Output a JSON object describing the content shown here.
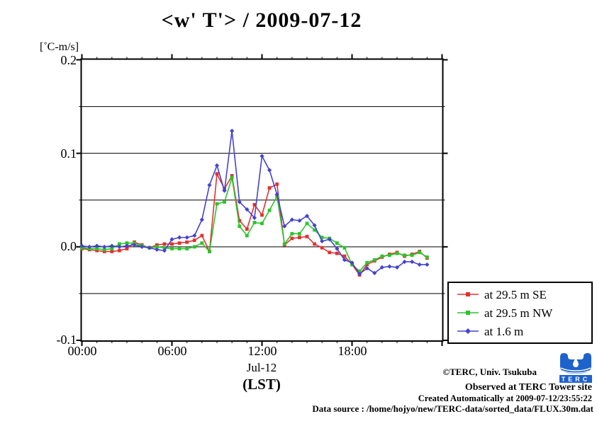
{
  "title": "<w' T'> / 2009-07-12",
  "y_axis": {
    "unit_label": "[˚C-m/s]",
    "labels": [
      "0.2",
      "0.1",
      "0.0",
      "-0.1"
    ]
  },
  "x_axis": {
    "labels": [
      "00:00",
      "06:00",
      "12:00",
      "18:00"
    ],
    "date_label": "Jul-12",
    "timezone_label": "(LST)"
  },
  "legend": {
    "entries": [
      {
        "label": "at 29.5 m SE",
        "color": "#e03232",
        "marker": "square"
      },
      {
        "label": "at 29.5 m NW",
        "color": "#2cc42c",
        "marker": "square"
      },
      {
        "label": "at 1.6 m",
        "color": "#4343cf",
        "marker": "diamond"
      }
    ]
  },
  "footer": {
    "credit": "©TERC, Univ. Tsukuba",
    "observed": "Observed at TERC Tower site",
    "created": "Created Automatically at 2009-07-12/23:55:22",
    "datasource": "Data source : /home/hojyo/new/TERC-data/sorted_data/FLUX.30m.dat",
    "logo_text": "TERC"
  },
  "chart_data": {
    "type": "line",
    "title": "<w' T'> / 2009-07-12",
    "ylabel": "[˚C-m/s]",
    "xlabel": "Jul-12 (LST)",
    "xlim_hours": [
      0,
      24
    ],
    "ylim": [
      -0.1,
      0.2
    ],
    "x_start_hour": 0,
    "x_step_hours": 0.5,
    "y_grid_values": [
      0.15,
      0.1,
      0.05,
      0.0,
      -0.05
    ],
    "y_tick_step": 0.05,
    "y_major_tick_step": 0.1,
    "x_minor_tick_step": 1,
    "x_major_tick_hours": [
      0,
      6,
      12,
      18,
      24
    ],
    "legend_position": "outside-right-bottom",
    "grid": true,
    "series": [
      {
        "name": "at 29.5 m SE",
        "color": "#e03232",
        "marker": "square",
        "values": [
          -0.002,
          -0.003,
          -0.004,
          -0.005,
          -0.005,
          -0.004,
          -0.002,
          0.005,
          0.002,
          -0.001,
          0.002,
          0.003,
          0.003,
          0.004,
          0.005,
          0.007,
          0.012,
          -0.005,
          0.078,
          0.062,
          0.076,
          0.028,
          0.019,
          0.045,
          0.034,
          0.063,
          0.067,
          0.002,
          0.009,
          0.01,
          0.011,
          0.003,
          -0.001,
          -0.006,
          -0.007,
          -0.01,
          -0.019,
          -0.03,
          -0.019,
          -0.015,
          -0.011,
          -0.008,
          -0.006,
          -0.01,
          -0.008,
          -0.005,
          -0.012
        ]
      },
      {
        "name": "at 29.5 m NW",
        "color": "#2cc42c",
        "marker": "square",
        "values": [
          -0.001,
          -0.002,
          -0.002,
          -0.003,
          -0.002,
          0.003,
          0.004,
          0.004,
          0.001,
          -0.001,
          0.0,
          -0.001,
          -0.002,
          -0.002,
          -0.002,
          0.0,
          0.004,
          -0.005,
          0.046,
          0.048,
          0.074,
          0.022,
          0.012,
          0.026,
          0.025,
          0.039,
          0.054,
          0.003,
          0.014,
          0.014,
          0.025,
          0.018,
          0.01,
          0.009,
          0.004,
          -0.001,
          -0.019,
          -0.026,
          -0.017,
          -0.014,
          -0.01,
          -0.009,
          -0.007,
          -0.009,
          -0.009,
          -0.006,
          -0.011
        ]
      },
      {
        "name": "at 1.6 m",
        "color": "#4343cf",
        "marker": "diamond",
        "values": [
          0.001,
          0.0,
          0.001,
          0.0,
          0.001,
          0.0,
          0.001,
          0.002,
          0.0,
          -0.001,
          -0.003,
          -0.004,
          0.008,
          0.01,
          0.01,
          0.012,
          0.029,
          0.066,
          0.087,
          0.06,
          0.124,
          0.048,
          0.04,
          0.031,
          0.097,
          0.082,
          0.056,
          0.022,
          0.029,
          0.028,
          0.033,
          0.023,
          0.006,
          0.008,
          -0.002,
          -0.014,
          -0.017,
          -0.029,
          -0.023,
          -0.028,
          -0.022,
          -0.021,
          -0.022,
          -0.016,
          -0.016,
          -0.019,
          -0.019
        ]
      }
    ]
  }
}
